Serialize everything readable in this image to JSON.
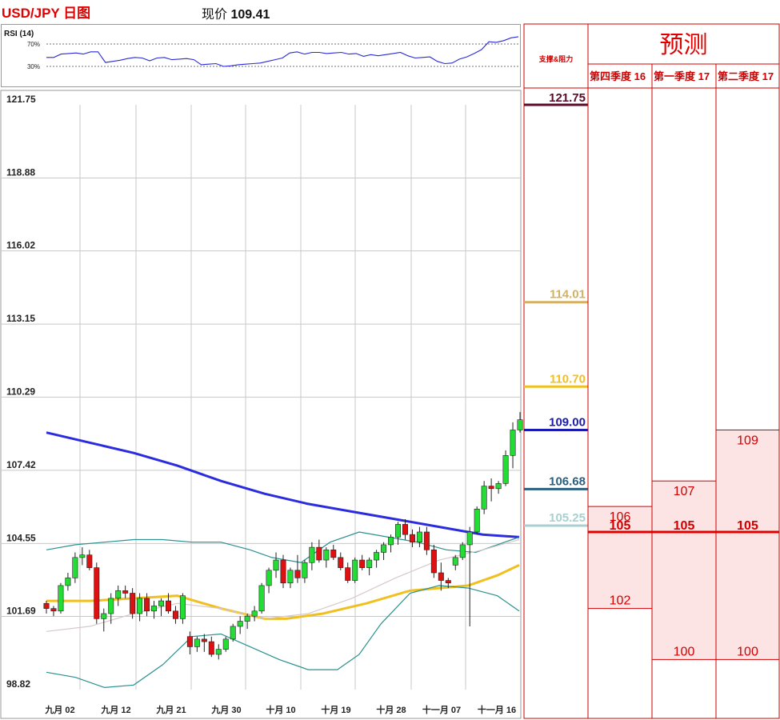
{
  "header": {
    "title": "USD/JPY 日图",
    "price_label": "现价",
    "price_value": "109.41"
  },
  "rsi": {
    "label": "RSI (14)",
    "levels": [
      "70%",
      "30%"
    ],
    "values": [
      46,
      46,
      52,
      53,
      54,
      52,
      56,
      56,
      37,
      39,
      41,
      44,
      46,
      45,
      40,
      45,
      46,
      42,
      43,
      44,
      42,
      33,
      34,
      35,
      30,
      31,
      33,
      34,
      35,
      36,
      39,
      42,
      45,
      54,
      56,
      52,
      55,
      55,
      53,
      54,
      55,
      52,
      53,
      48,
      51,
      49,
      51,
      53,
      55,
      49,
      45,
      46,
      47,
      39,
      35,
      36,
      43,
      47,
      53,
      60,
      74,
      73,
      76,
      81,
      83
    ]
  },
  "chart_data": {
    "type": "candlestick",
    "yticks": [
      "121.75",
      "118.88",
      "116.02",
      "113.15",
      "110.29",
      "107.42",
      "104.55",
      "101.69",
      "98.82"
    ],
    "ylim": [
      98.82,
      121.75
    ],
    "xticks": [
      "九月 02",
      "九月 12",
      "九月 21",
      "九月 30",
      "十月 10",
      "十月 19",
      "十月 28",
      "十一月 07",
      "十一月 16"
    ],
    "candles": [
      [
        102.2,
        102.3,
        101.8,
        102.0
      ],
      [
        102.0,
        102.1,
        101.7,
        101.9
      ],
      [
        101.9,
        103.0,
        101.8,
        102.9
      ],
      [
        102.9,
        103.4,
        102.7,
        103.2
      ],
      [
        103.2,
        104.2,
        103.0,
        104.0
      ],
      [
        104.0,
        104.4,
        103.7,
        104.1
      ],
      [
        104.1,
        104.3,
        103.5,
        103.6
      ],
      [
        103.6,
        103.8,
        101.4,
        101.6
      ],
      [
        101.6,
        102.0,
        101.1,
        101.8
      ],
      [
        101.8,
        102.6,
        101.4,
        102.4
      ],
      [
        102.4,
        102.9,
        102.1,
        102.7
      ],
      [
        102.7,
        102.9,
        102.4,
        102.6
      ],
      [
        102.6,
        102.8,
        101.6,
        101.8
      ],
      [
        101.8,
        102.6,
        101.5,
        102.4
      ],
      [
        102.4,
        102.6,
        101.7,
        101.9
      ],
      [
        101.9,
        102.3,
        101.6,
        102.1
      ],
      [
        102.1,
        102.4,
        101.7,
        102.3
      ],
      [
        102.3,
        102.6,
        101.8,
        101.9
      ],
      [
        101.9,
        102.1,
        101.4,
        101.6
      ],
      [
        101.6,
        102.6,
        101.4,
        102.5
      ],
      [
        100.9,
        101.1,
        100.2,
        100.5
      ],
      [
        100.5,
        100.9,
        100.3,
        100.8
      ],
      [
        100.8,
        101.0,
        100.3,
        100.7
      ],
      [
        100.7,
        100.9,
        100.1,
        100.2
      ],
      [
        100.2,
        100.6,
        100.0,
        100.4
      ],
      [
        100.4,
        100.9,
        100.3,
        100.8
      ],
      [
        100.8,
        101.4,
        100.7,
        101.3
      ],
      [
        101.3,
        101.7,
        101.0,
        101.5
      ],
      [
        101.5,
        101.8,
        101.2,
        101.7
      ],
      [
        101.7,
        102.1,
        101.5,
        101.9
      ],
      [
        101.9,
        103.0,
        101.8,
        102.9
      ],
      [
        102.9,
        103.6,
        102.6,
        103.5
      ],
      [
        103.5,
        104.2,
        103.2,
        103.9
      ],
      [
        103.9,
        104.1,
        102.8,
        103.0
      ],
      [
        103.0,
        103.6,
        102.8,
        103.5
      ],
      [
        103.5,
        104.1,
        103.0,
        103.2
      ],
      [
        103.2,
        103.9,
        103.0,
        103.8
      ],
      [
        103.8,
        104.6,
        103.5,
        104.4
      ],
      [
        104.4,
        104.7,
        103.8,
        103.9
      ],
      [
        103.9,
        104.4,
        103.6,
        104.3
      ],
      [
        104.3,
        104.5,
        103.9,
        104.0
      ],
      [
        104.0,
        104.2,
        103.5,
        103.6
      ],
      [
        103.6,
        103.8,
        103.0,
        103.1
      ],
      [
        103.1,
        104.0,
        103.0,
        103.9
      ],
      [
        103.9,
        104.1,
        103.5,
        103.6
      ],
      [
        103.6,
        104.0,
        103.3,
        103.9
      ],
      [
        103.9,
        104.3,
        103.6,
        104.2
      ],
      [
        104.2,
        104.6,
        103.9,
        104.5
      ],
      [
        104.5,
        104.9,
        104.2,
        104.8
      ],
      [
        104.8,
        105.4,
        104.5,
        105.3
      ],
      [
        105.3,
        105.5,
        104.7,
        104.9
      ],
      [
        104.9,
        105.1,
        104.4,
        104.6
      ],
      [
        104.6,
        105.2,
        104.4,
        105.0
      ],
      [
        105.0,
        105.2,
        104.1,
        104.3
      ],
      [
        104.3,
        104.5,
        103.2,
        103.4
      ],
      [
        103.4,
        103.8,
        102.7,
        103.1
      ],
      [
        103.1,
        103.2,
        102.8,
        103.0
      ],
      [
        103.7,
        104.1,
        103.5,
        104.0
      ],
      [
        104.0,
        104.6,
        103.9,
        104.5
      ],
      [
        104.5,
        105.2,
        101.3,
        105.0
      ],
      [
        105.0,
        106.0,
        104.9,
        105.9
      ],
      [
        105.9,
        107.0,
        105.7,
        106.8
      ],
      [
        106.8,
        107.1,
        106.2,
        106.7
      ],
      [
        106.7,
        107.0,
        106.5,
        106.9
      ],
      [
        106.9,
        108.2,
        106.8,
        108.0
      ],
      [
        108.0,
        109.3,
        107.5,
        109.0
      ],
      [
        109.0,
        109.7,
        108.9,
        109.4
      ]
    ],
    "series": [
      {
        "name": "",
        "color": "#2b2be0",
        "values": [
          [
            0,
            108.9
          ],
          [
            60,
            108.5
          ],
          [
            120,
            108.1
          ],
          [
            180,
            107.6
          ],
          [
            240,
            107.0
          ],
          [
            300,
            106.5
          ],
          [
            360,
            106.1
          ],
          [
            420,
            105.8
          ],
          [
            480,
            105.5
          ],
          [
            540,
            105.2
          ],
          [
            600,
            104.9
          ],
          [
            650,
            104.8
          ]
        ]
      },
      {
        "name": "",
        "color": "#f0c020",
        "values": [
          [
            0,
            102.3
          ],
          [
            60,
            102.3
          ],
          [
            120,
            102.4
          ],
          [
            180,
            102.5
          ],
          [
            240,
            102.0
          ],
          [
            300,
            101.6
          ],
          [
            330,
            101.6
          ],
          [
            380,
            101.8
          ],
          [
            440,
            102.2
          ],
          [
            500,
            102.7
          ],
          [
            540,
            102.8
          ],
          [
            580,
            102.9
          ],
          [
            620,
            103.3
          ],
          [
            650,
            103.7
          ]
        ]
      },
      {
        "name": "",
        "color": "#2a9090",
        "values": [
          [
            0,
            104.3
          ],
          [
            40,
            104.5
          ],
          [
            80,
            104.6
          ],
          [
            120,
            104.7
          ],
          [
            160,
            104.7
          ],
          [
            200,
            104.6
          ],
          [
            240,
            104.6
          ],
          [
            280,
            104.3
          ],
          [
            310,
            104.0
          ],
          [
            350,
            103.8
          ],
          [
            390,
            104.6
          ],
          [
            430,
            105.0
          ],
          [
            470,
            104.8
          ],
          [
            510,
            104.6
          ],
          [
            550,
            104.3
          ],
          [
            590,
            104.2
          ],
          [
            620,
            104.5
          ],
          [
            650,
            104.8
          ]
        ]
      },
      {
        "name": "",
        "color": "#2a9090",
        "values": [
          [
            0,
            99.5
          ],
          [
            40,
            99.3
          ],
          [
            80,
            98.9
          ],
          [
            120,
            99.0
          ],
          [
            160,
            99.8
          ],
          [
            200,
            100.9
          ],
          [
            240,
            101.0
          ],
          [
            280,
            100.5
          ],
          [
            320,
            100.0
          ],
          [
            360,
            99.6
          ],
          [
            400,
            99.6
          ],
          [
            430,
            100.2
          ],
          [
            460,
            101.4
          ],
          [
            500,
            102.6
          ],
          [
            540,
            102.9
          ],
          [
            580,
            102.8
          ],
          [
            620,
            102.5
          ],
          [
            650,
            101.9
          ]
        ]
      },
      {
        "name": "",
        "color": "#d8c8c8",
        "values": [
          [
            0,
            101.1
          ],
          [
            60,
            101.3
          ],
          [
            120,
            101.8
          ],
          [
            180,
            102.2
          ],
          [
            240,
            102.0
          ],
          [
            300,
            101.6
          ],
          [
            360,
            101.8
          ],
          [
            420,
            102.4
          ],
          [
            480,
            103.2
          ],
          [
            540,
            103.9
          ],
          [
            600,
            104.3
          ],
          [
            650,
            104.7
          ]
        ]
      }
    ]
  },
  "levels_panel": {
    "header": "支撑&阻力",
    "levels": [
      {
        "label": "121.75",
        "value": 121.75,
        "color": "#5a0a2a"
      },
      {
        "label": "114.01",
        "value": 114.01,
        "color": "#d4b060"
      },
      {
        "label": "110.70",
        "value": 110.7,
        "color": "#f0c020"
      },
      {
        "label": "109.00",
        "value": 109.0,
        "color": "#1a1ab0"
      },
      {
        "label": "106.68",
        "value": 106.68,
        "color": "#2a6080"
      },
      {
        "label": "105.25",
        "value": 105.25,
        "color": "#a8d0d0"
      }
    ]
  },
  "forecast": {
    "title": "预测",
    "columns": [
      {
        "header": "第四季度 16",
        "high": "106",
        "low": "102",
        "mid": "105",
        "high_value": 106,
        "low_value": 102
      },
      {
        "header": "第一季度 17",
        "high": "107",
        "low": "100",
        "mid": "105",
        "high_value": 107,
        "low_value": 100
      },
      {
        "header": "第二季度 17",
        "high": "109",
        "low": "100",
        "mid": "105",
        "high_value": 109,
        "low_value": 100
      }
    ],
    "mid_value": 105
  }
}
